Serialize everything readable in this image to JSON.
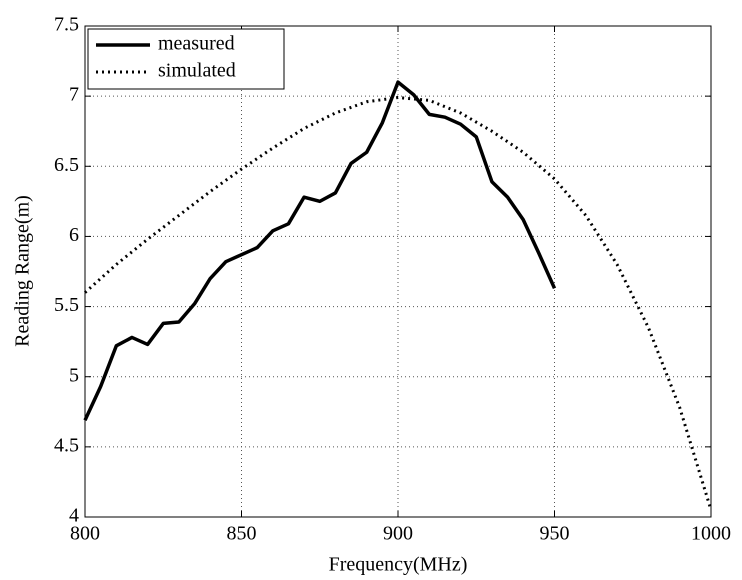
{
  "chart_data": {
    "type": "line",
    "x_label": "Frequency(MHz)",
    "y_label": "Reading Range(m)",
    "xlim": [
      800,
      1000
    ],
    "xticks": [
      800,
      850,
      900,
      950,
      1000
    ],
    "ylim": [
      4,
      7.5
    ],
    "yticks": [
      4,
      4.5,
      5,
      5.5,
      6,
      6.5,
      7,
      7.5
    ],
    "grid": true,
    "legend": "upper left",
    "series": [
      {
        "name": "measured",
        "color": "#000000",
        "style": "solid",
        "x": [
          800,
          805,
          810,
          815,
          820,
          825,
          830,
          835,
          840,
          845,
          850,
          855,
          860,
          865,
          870,
          875,
          880,
          885,
          890,
          895,
          900,
          905,
          910,
          915,
          920,
          925,
          930,
          935,
          940,
          945,
          950
        ],
        "values": [
          4.69,
          4.93,
          5.22,
          5.28,
          5.23,
          5.38,
          5.39,
          5.52,
          5.7,
          5.82,
          5.87,
          5.92,
          6.04,
          6.09,
          6.28,
          6.25,
          6.31,
          6.52,
          6.6,
          6.81,
          7.1,
          7.01,
          6.87,
          6.85,
          6.8,
          6.71,
          6.39,
          6.28,
          6.12,
          5.88,
          5.63
        ]
      },
      {
        "name": "simulated",
        "color": "#000000",
        "style": "dotted",
        "x": [
          800,
          810,
          820,
          830,
          840,
          850,
          860,
          870,
          880,
          890,
          900,
          910,
          920,
          930,
          940,
          950,
          960,
          970,
          980,
          990,
          1000
        ],
        "values": [
          5.6,
          5.8,
          5.98,
          6.15,
          6.32,
          6.48,
          6.63,
          6.77,
          6.88,
          6.96,
          6.99,
          6.97,
          6.88,
          6.75,
          6.6,
          6.41,
          6.15,
          5.8,
          5.35,
          4.78,
          4.05
        ]
      }
    ]
  }
}
